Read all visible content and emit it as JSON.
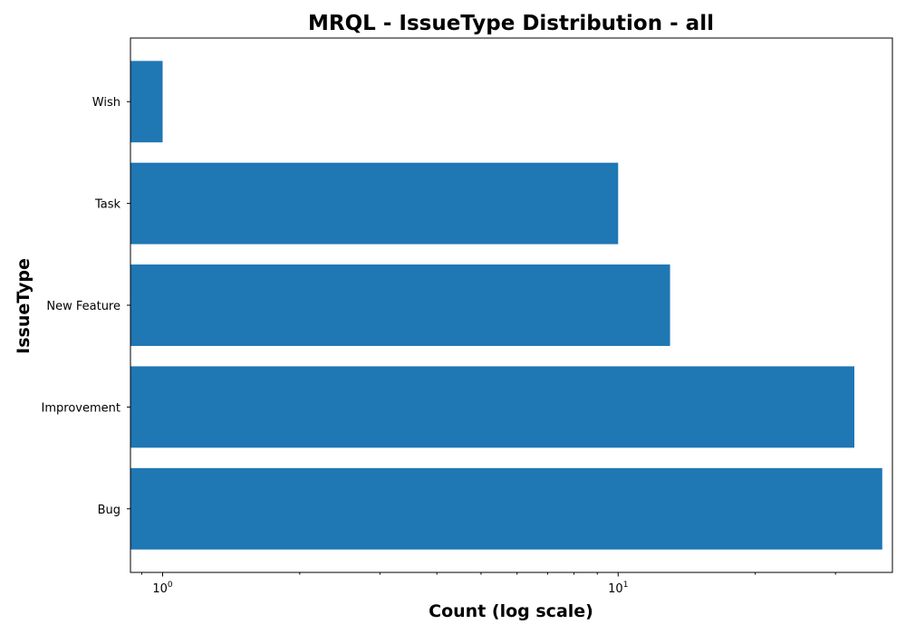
{
  "chart_data": {
    "type": "bar",
    "orientation": "horizontal",
    "title": "MRQL - IssueType Distribution - all",
    "xlabel": "Count (log scale)",
    "ylabel": "IssueType",
    "x_scale": "log",
    "xlim": [
      0.85,
      40
    ],
    "categories": [
      "Wish",
      "Task",
      "New Feature",
      "Improvement",
      "Bug"
    ],
    "values": [
      1,
      10,
      13,
      33,
      38
    ],
    "x_major_ticks": [
      {
        "base": "10",
        "exp": "0",
        "value": 1
      },
      {
        "base": "10",
        "exp": "1",
        "value": 10
      }
    ],
    "bar_color": "#1f77b4",
    "grid": false
  }
}
